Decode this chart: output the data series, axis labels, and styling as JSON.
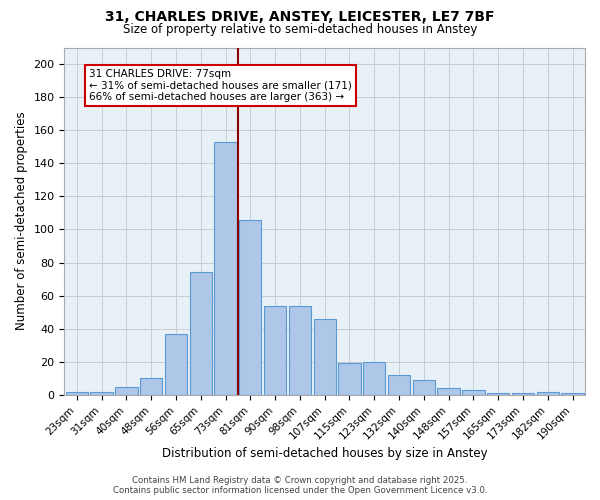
{
  "title_line1": "31, CHARLES DRIVE, ANSTEY, LEICESTER, LE7 7BF",
  "title_line2": "Size of property relative to semi-detached houses in Anstey",
  "xlabel": "Distribution of semi-detached houses by size in Anstey",
  "ylabel": "Number of semi-detached properties",
  "categories": [
    "23sqm",
    "31sqm",
    "40sqm",
    "48sqm",
    "56sqm",
    "65sqm",
    "73sqm",
    "81sqm",
    "90sqm",
    "98sqm",
    "107sqm",
    "115sqm",
    "123sqm",
    "132sqm",
    "140sqm",
    "148sqm",
    "157sqm",
    "165sqm",
    "173sqm",
    "182sqm",
    "190sqm"
  ],
  "values": [
    2,
    2,
    5,
    10,
    37,
    74,
    153,
    106,
    54,
    54,
    46,
    19,
    20,
    12,
    9,
    4,
    3,
    1,
    1,
    2,
    1
  ],
  "bar_color": "#aec6e8",
  "bar_edge_color": "#5b9bd5",
  "vline_x_index": 6.5,
  "vline_color": "#8b0000",
  "annotation_text": "31 CHARLES DRIVE: 77sqm\n← 31% of semi-detached houses are smaller (171)\n66% of semi-detached houses are larger (363) →",
  "annotation_box_color": "#ffffff",
  "annotation_box_edge_color": "#cc0000",
  "ylim": [
    0,
    210
  ],
  "yticks": [
    0,
    20,
    40,
    60,
    80,
    100,
    120,
    140,
    160,
    180,
    200
  ],
  "grid_color": "#cccccc",
  "bg_color": "#e8f0f8",
  "footer_line1": "Contains HM Land Registry data © Crown copyright and database right 2025.",
  "footer_line2": "Contains public sector information licensed under the Open Government Licence v3.0."
}
